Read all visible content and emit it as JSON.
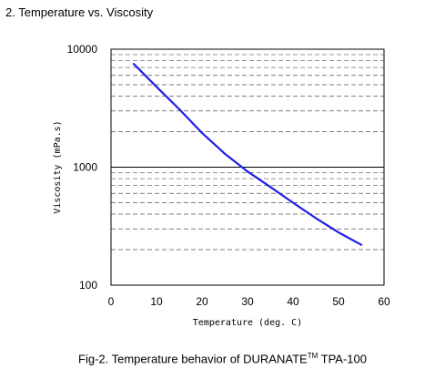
{
  "heading": "2. Temperature vs. Viscosity",
  "caption": {
    "prefix": "Fig-2. Temperature behavior of DURANATE",
    "superscript": "TM",
    "suffix": " TPA-100"
  },
  "chart_data": {
    "type": "line",
    "title": "",
    "xlabel": "Temperature (deg. C)",
    "ylabel": "Viscosity (mPa.s)",
    "xlim": [
      0,
      60
    ],
    "ylim": [
      100,
      10000
    ],
    "yscale": "log",
    "xticks": [
      "0",
      "10",
      "20",
      "30",
      "40",
      "50",
      "60"
    ],
    "yticks": [
      "100",
      "1000",
      "10000"
    ],
    "grid": "dashed horizontal at log minor ticks, solid at 1000",
    "line_color": "#1f1fe6",
    "series": [
      {
        "x": [
          5,
          10,
          15,
          20,
          25,
          30,
          35,
          40,
          45,
          50,
          55
        ],
        "y": [
          7500,
          4800,
          3100,
          1950,
          1300,
          920,
          680,
          500,
          370,
          280,
          220
        ]
      }
    ]
  }
}
